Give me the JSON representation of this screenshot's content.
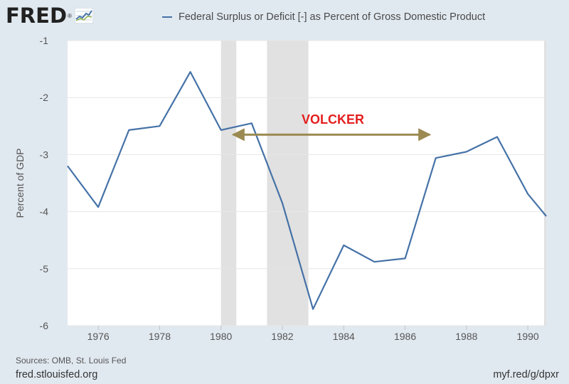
{
  "logo": {
    "text": "FRED",
    "registered": "®",
    "icon": "line-chart-icon"
  },
  "legend": {
    "label": "Federal Surplus or Deficit [-] as Percent of Gross Domestic Product"
  },
  "annotation": {
    "text": "VOLCKER",
    "color": "#e41e1e",
    "arrow_color": "#9b8a52",
    "from_year": 1980.3,
    "to_year": 1986.9,
    "y_value": -2.65
  },
  "footer": {
    "sources": "Sources: OMB, St. Louis Fed",
    "site": "fred.stlouisfed.org",
    "short_url": "myf.red/g/dpxr"
  },
  "chart_data": {
    "type": "line",
    "ylabel": "Percent of GDP",
    "xlabel": "",
    "xlim": [
      1975,
      1990.6
    ],
    "ylim": [
      -6,
      -1
    ],
    "yticks": [
      -1,
      -2,
      -3,
      -4,
      -5,
      -6
    ],
    "xticks": [
      1976,
      1978,
      1980,
      1982,
      1984,
      1986,
      1988,
      1990
    ],
    "grid": true,
    "line_color": "#4572a7",
    "recessions": [
      [
        1980.0,
        1980.5
      ],
      [
        1981.5,
        1982.85
      ]
    ],
    "series": [
      {
        "name": "Federal Surplus or Deficit [-] as Percent of Gross Domestic Product",
        "x": [
          1975,
          1976,
          1977,
          1978,
          1979,
          1980,
          1981,
          1982,
          1983,
          1984,
          1985,
          1986,
          1987,
          1988,
          1989,
          1990,
          1990.6
        ],
        "y": [
          -3.2,
          -3.92,
          -2.57,
          -2.5,
          -1.55,
          -2.57,
          -2.45,
          -3.85,
          -5.71,
          -4.59,
          -4.88,
          -4.82,
          -3.06,
          -2.95,
          -2.69,
          -3.69,
          -4.08
        ]
      }
    ]
  }
}
